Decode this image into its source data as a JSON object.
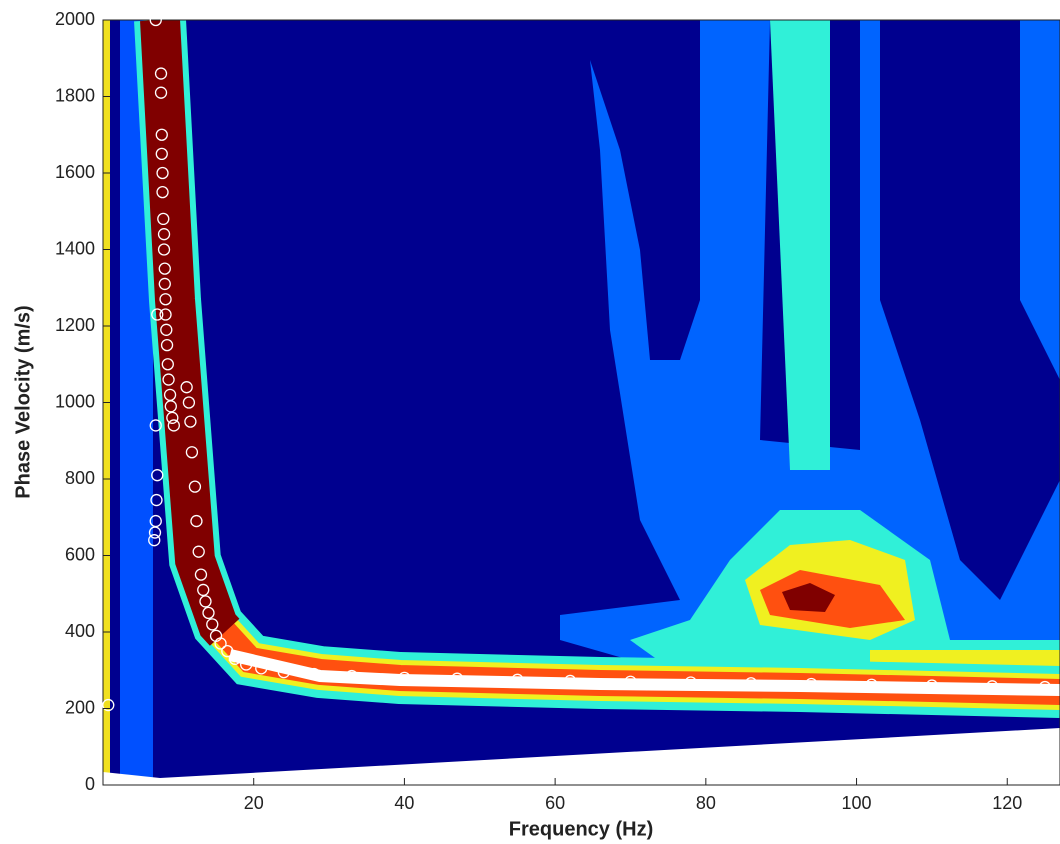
{
  "chart_data": {
    "type": "scatter",
    "xlabel": "Frequency (Hz)",
    "ylabel": "Phase Velocity (m/s)",
    "x": [
      0.7,
      6.8,
      6.9,
      7.0,
      7.1,
      7.2,
      7.0,
      7.2,
      7.0,
      7.7,
      7.7,
      7.8,
      7.8,
      7.9,
      7.9,
      8.0,
      8.1,
      8.1,
      8.2,
      8.2,
      8.3,
      8.3,
      8.4,
      8.5,
      8.6,
      8.7,
      8.9,
      9.0,
      9.2,
      9.4,
      11.1,
      11.4,
      11.6,
      11.8,
      12.2,
      12.4,
      12.7,
      13.0,
      13.3,
      13.6,
      14.0,
      14.5,
      15.0,
      15.6,
      16.5,
      17.5,
      19,
      21,
      24,
      28,
      33,
      40,
      47,
      55,
      62,
      70,
      78,
      86,
      94,
      102,
      110,
      118,
      125
    ],
    "values": [
      209,
      640,
      660,
      690,
      745,
      810,
      940,
      1230,
      2000,
      1860,
      1810,
      1700,
      1650,
      1600,
      1550,
      1480,
      1440,
      1400,
      1350,
      1310,
      1270,
      1230,
      1190,
      1150,
      1100,
      1060,
      1020,
      990,
      960,
      940,
      1040,
      1000,
      950,
      870,
      780,
      690,
      610,
      550,
      510,
      480,
      450,
      420,
      390,
      370,
      350,
      330,
      315,
      305,
      295,
      290,
      285,
      280,
      278,
      275,
      272,
      270,
      268,
      266,
      264,
      262,
      260,
      258,
      256
    ],
    "marker_color": "#ffffff",
    "xlim": [
      0,
      127
    ],
    "ylim": [
      0,
      2000
    ],
    "xticks": [
      20,
      40,
      60,
      80,
      100,
      120
    ],
    "yticks": [
      0,
      200,
      400,
      600,
      800,
      1000,
      1200,
      1400,
      1600,
      1800,
      2000
    ]
  }
}
